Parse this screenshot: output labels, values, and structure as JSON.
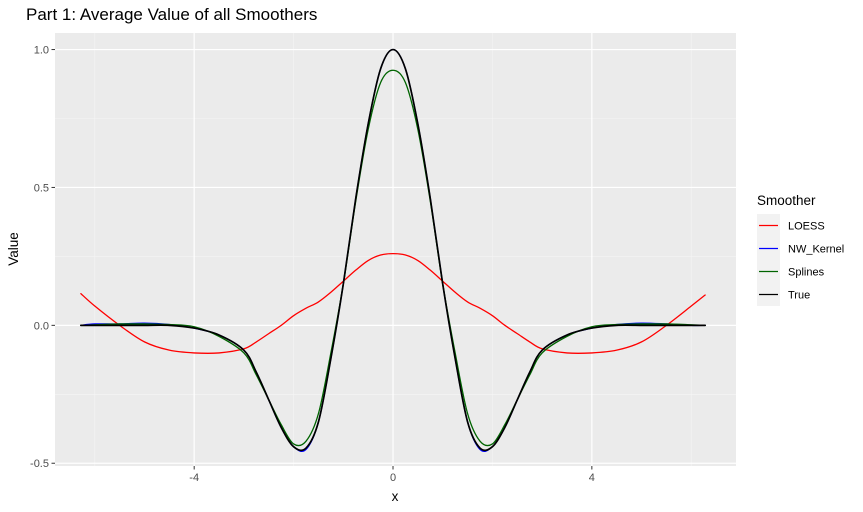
{
  "chart_data": {
    "type": "line",
    "title": "Part 1: Average Value of all Smoothers",
    "xlabel": "x",
    "ylabel": "Value",
    "xlim": [
      -6.8,
      6.9
    ],
    "ylim": [
      -0.51,
      1.06
    ],
    "x_ticks": [
      -4,
      0,
      4
    ],
    "y_ticks": [
      -0.5,
      0.0,
      0.5,
      1.0
    ],
    "x_tick_labels": [
      "-4",
      "0",
      "4"
    ],
    "y_tick_labels": [
      "-0.5",
      "0.0",
      "0.5",
      "1.0"
    ],
    "grid": true,
    "legend": {
      "title": "Smoother",
      "position": "right"
    },
    "x": [
      -6.28,
      -6.0,
      -5.5,
      -5.0,
      -4.5,
      -4.0,
      -3.5,
      -3.0,
      -2.75,
      -2.5,
      -2.25,
      -2.0,
      -1.75,
      -1.5,
      -1.25,
      -1.0,
      -0.75,
      -0.5,
      -0.25,
      0.0,
      0.25,
      0.5,
      0.75,
      1.0,
      1.25,
      1.5,
      1.75,
      2.0,
      2.25,
      2.5,
      2.75,
      3.0,
      3.5,
      4.0,
      4.5,
      5.0,
      5.5,
      6.0,
      6.28
    ],
    "series": [
      {
        "name": "LOESS",
        "color": "#ff0000",
        "values": [
          0.115,
          0.07,
          0.0,
          -0.06,
          -0.09,
          -0.1,
          -0.1,
          -0.085,
          -0.06,
          -0.03,
          0.0,
          0.035,
          0.062,
          0.085,
          0.12,
          0.16,
          0.2,
          0.235,
          0.255,
          0.26,
          0.255,
          0.235,
          0.2,
          0.16,
          0.12,
          0.085,
          0.062,
          0.035,
          0.0,
          -0.03,
          -0.06,
          -0.085,
          -0.1,
          -0.1,
          -0.09,
          -0.06,
          0.0,
          0.07,
          0.11
        ]
      },
      {
        "name": "NW_Kernel",
        "color": "#0000ff",
        "values": [
          0.0,
          0.005,
          0.005,
          0.008,
          0.003,
          -0.01,
          -0.035,
          -0.09,
          -0.17,
          -0.27,
          -0.37,
          -0.44,
          -0.45,
          -0.35,
          -0.12,
          0.15,
          0.46,
          0.73,
          0.93,
          1.0,
          0.93,
          0.73,
          0.46,
          0.15,
          -0.12,
          -0.35,
          -0.45,
          -0.44,
          -0.37,
          -0.27,
          -0.17,
          -0.09,
          -0.035,
          -0.01,
          0.003,
          0.008,
          0.005,
          0.0,
          0.0
        ]
      },
      {
        "name": "Splines",
        "color": "#006400",
        "values": [
          0.0,
          0.002,
          0.005,
          0.005,
          0.003,
          -0.005,
          -0.04,
          -0.1,
          -0.18,
          -0.27,
          -0.36,
          -0.43,
          -0.42,
          -0.32,
          -0.1,
          0.15,
          0.45,
          0.71,
          0.88,
          0.925,
          0.88,
          0.71,
          0.45,
          0.15,
          -0.1,
          -0.32,
          -0.42,
          -0.43,
          -0.36,
          -0.27,
          -0.18,
          -0.1,
          -0.04,
          -0.005,
          0.003,
          0.005,
          0.005,
          0.002,
          0.0
        ]
      },
      {
        "name": "True",
        "color": "#000000",
        "values": [
          0.0,
          0.0,
          0.0,
          0.0,
          0.0,
          -0.01,
          -0.035,
          -0.09,
          -0.17,
          -0.27,
          -0.37,
          -0.44,
          -0.445,
          -0.35,
          -0.12,
          0.15,
          0.46,
          0.73,
          0.93,
          1.0,
          0.93,
          0.73,
          0.46,
          0.15,
          -0.12,
          -0.35,
          -0.445,
          -0.44,
          -0.37,
          -0.27,
          -0.17,
          -0.09,
          -0.035,
          -0.01,
          0.0,
          0.0,
          0.0,
          0.0,
          0.0
        ]
      }
    ]
  }
}
